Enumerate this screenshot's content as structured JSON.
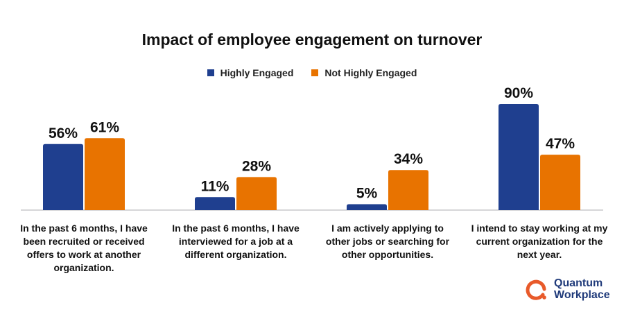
{
  "chart_data": {
    "type": "bar",
    "title": "Impact of employee engagement on turnover",
    "categories": [
      "In the past 6 months, I have been recruited or received offers to work at another organization.",
      "In the past 6 months, I have interviewed for a job at a different organization.",
      "I am actively applying to other jobs or searching for other opportunities.",
      "I intend to stay working at my current organization for the next year."
    ],
    "series": [
      {
        "name": "Highly Engaged",
        "color": "#1f3f8f",
        "values": [
          56,
          11,
          5,
          90
        ],
        "labels": [
          "56%",
          "11%",
          "5%",
          "90%"
        ]
      },
      {
        "name": "Not Highly Engaged",
        "color": "#e87300",
        "values": [
          61,
          28,
          34,
          47
        ],
        "labels": [
          "61%",
          "28%",
          "34%",
          "47%"
        ]
      }
    ],
    "ylim": [
      0,
      100
    ],
    "grid": false,
    "legend_position": "top-center"
  },
  "logo": {
    "text_line1": "Quantum",
    "text_line2": "Workplace",
    "color": "#e85a2a"
  }
}
